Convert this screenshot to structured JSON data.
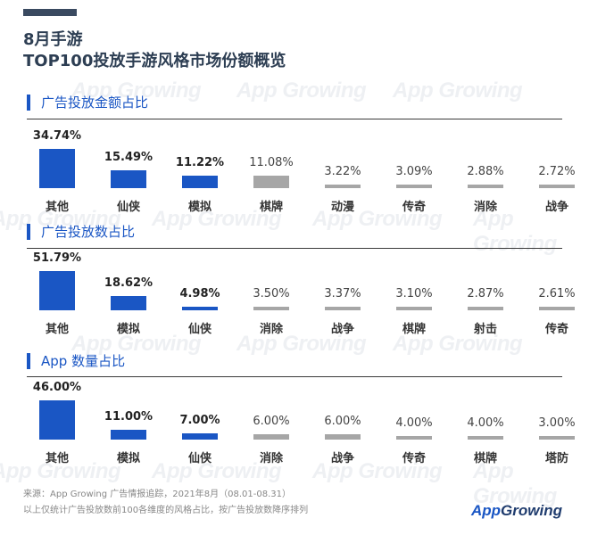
{
  "title_line1": "8月手游",
  "title_line2": "TOP100投放手游风格市场份额概览",
  "watermark": "App Growing",
  "colors": {
    "highlight": "#1a56c4",
    "muted": "#a6a6a6",
    "title": "#2d3e53"
  },
  "chart_data": [
    {
      "type": "bar",
      "title": "广告投放金额占比",
      "categories": [
        "其他",
        "仙侠",
        "模拟",
        "棋牌",
        "动漫",
        "传奇",
        "消除",
        "战争"
      ],
      "values": [
        34.74,
        15.49,
        11.22,
        11.08,
        3.22,
        3.09,
        2.88,
        2.72
      ],
      "labels": [
        "34.74%",
        "15.49%",
        "11.22%",
        "11.08%",
        "3.22%",
        "3.09%",
        "2.88%",
        "2.72%"
      ],
      "highlighted": [
        true,
        true,
        true,
        false,
        false,
        false,
        false,
        false
      ],
      "unit": "%"
    },
    {
      "type": "bar",
      "title": "广告投放数占比",
      "categories": [
        "其他",
        "模拟",
        "仙侠",
        "消除",
        "战争",
        "棋牌",
        "射击",
        "传奇"
      ],
      "values": [
        51.79,
        18.62,
        4.98,
        3.5,
        3.37,
        3.1,
        2.87,
        2.61
      ],
      "labels": [
        "51.79%",
        "18.62%",
        "4.98%",
        "3.50%",
        "3.37%",
        "3.10%",
        "2.87%",
        "2.61%"
      ],
      "highlighted": [
        true,
        true,
        true,
        false,
        false,
        false,
        false,
        false
      ],
      "unit": "%"
    },
    {
      "type": "bar",
      "title": "App 数量占比",
      "categories": [
        "其他",
        "模拟",
        "仙侠",
        "消除",
        "战争",
        "传奇",
        "棋牌",
        "塔防"
      ],
      "values": [
        46.0,
        11.0,
        7.0,
        6.0,
        6.0,
        4.0,
        4.0,
        3.0
      ],
      "labels": [
        "46.00%",
        "11.00%",
        "7.00%",
        "6.00%",
        "6.00%",
        "4.00%",
        "4.00%",
        "3.00%"
      ],
      "highlighted": [
        true,
        true,
        true,
        false,
        false,
        false,
        false,
        false
      ],
      "unit": "%"
    }
  ],
  "footer": {
    "source": "来源：App Growing 广告情报追踪，2021年8月（08.01-08.31）",
    "note": "以上仅统计广告投放数前100各维度的风格占比，按广告投放数降序排列"
  },
  "logo": {
    "part1": "App",
    "part2": "Growing"
  }
}
